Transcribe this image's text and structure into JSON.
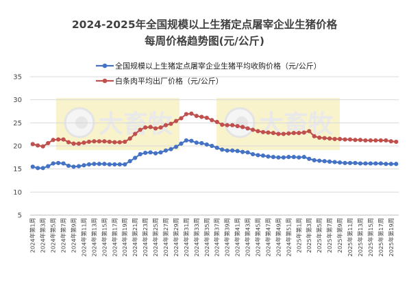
{
  "chart_data": {
    "type": "line",
    "title_lines": [
      "2024-2025年全国规模以上生猪定点屠宰企业生猪价格",
      "每周价格趋势图(元/公斤)"
    ],
    "xlabel": "",
    "ylabel": "",
    "ylim": [
      5,
      35
    ],
    "yticks": [
      5,
      10,
      15,
      20,
      25,
      30,
      35
    ],
    "grid": true,
    "legend_position": "top",
    "watermark_text": "大畜牧",
    "categories": [
      "2024年第1周",
      "2024年第2周",
      "2024年第3周",
      "2024年第4周",
      "2024年第5周",
      "2024年第6周",
      "2024年第7周",
      "2024年第8周",
      "2024年第9周",
      "2024年第10周",
      "2024年第11周",
      "2024年第12周",
      "2024年第13周",
      "2024年第14周",
      "2024年第15周",
      "2024年第16周",
      "2024年第17周",
      "2024年第18周",
      "2024年第19周",
      "2024年第20周",
      "2024年第21周",
      "2024年第22周",
      "2024年第23周",
      "2024年第24周",
      "2024年第25周",
      "2024年第26周",
      "2024年第27周",
      "2024年第28周",
      "2024年第29周",
      "2024年第30周",
      "2024年第31周",
      "2024年第32周",
      "2024年第33周",
      "2024年第34周",
      "2024年第35周",
      "2024年第36周",
      "2024年第37周",
      "2024年第38周",
      "2024年第39周",
      "2024年第40周",
      "2024年第41周",
      "2024年第42周",
      "2024年第43周",
      "2024年第44周",
      "2024年第45周",
      "2024年第46周",
      "2024年第47周",
      "2024年第48周",
      "2024年第49周",
      "2024年第50周",
      "2024年第51周",
      "2024年第52周",
      "2025年第1周",
      "2025年第2周",
      "2025年第3周",
      "2025年第4周",
      "2025年第5周",
      "2025年第6周",
      "2025年第7周",
      "2025年第8周",
      "2025年第9周",
      "2025年第10周",
      "2025年第11周",
      "2025年第12周",
      "2025年第13周",
      "2025年第14周",
      "2025年第15周",
      "2025年第16周",
      "2025年第17周",
      "2025年第18周",
      "2025年第19周",
      "2025年第20周"
    ],
    "x_tick_labels": [
      "2024年第1周",
      "2024年第3周",
      "2024年第5周",
      "2024年第7周",
      "2024年第9周",
      "2024年第11周",
      "2024年第13周",
      "2024年第15周",
      "2024年第17周",
      "2024年第19周",
      "2024年第21周",
      "2024年第23周",
      "2024年第25周",
      "2024年第27周",
      "2024年第29周",
      "2024年第31周",
      "2024年第33周",
      "2024年第35周",
      "2024年第37周",
      "2024年第39周",
      "2024年第41周",
      "2024年第43周",
      "2024年第45周",
      "2024年第47周",
      "2024年第49周",
      "2024年第51周",
      "2025年第1周",
      "2025年第3周",
      "2025年第5周",
      "2025年第7周",
      "2025年第9周",
      "2025年第11周",
      "2025年第13周",
      "2025年第15周",
      "2025年第17周",
      "2025年第19周"
    ],
    "series": [
      {
        "name": "全国规模以上生猪定点屠宰企业生猪平均收购价格（元/公斤）",
        "color": "#4472c4",
        "values": [
          15.5,
          15.2,
          15.2,
          15.6,
          16.2,
          16.3,
          16.2,
          15.7,
          15.5,
          15.6,
          15.8,
          16.0,
          16.1,
          16.1,
          16.1,
          16.0,
          16.0,
          16.0,
          16.0,
          16.7,
          17.4,
          18.2,
          18.5,
          18.6,
          18.4,
          18.6,
          19.0,
          19.3,
          19.8,
          20.5,
          21.2,
          21.1,
          20.7,
          20.6,
          20.3,
          20.0,
          19.6,
          19.2,
          19.0,
          19.0,
          18.9,
          18.7,
          18.6,
          18.2,
          18.0,
          17.9,
          17.7,
          17.6,
          17.5,
          17.5,
          17.6,
          17.6,
          17.5,
          17.6,
          17.2,
          16.9,
          16.8,
          16.7,
          16.6,
          16.5,
          16.4,
          16.3,
          16.3,
          16.3,
          16.2,
          16.2,
          16.2,
          16.2,
          16.2,
          16.1,
          16.1,
          16.1
        ]
      },
      {
        "name": "白条肉平均出厂价格（元/公斤）",
        "color": "#c0504d",
        "values": [
          20.4,
          20.1,
          19.9,
          20.6,
          21.3,
          21.4,
          21.4,
          20.8,
          20.5,
          20.5,
          20.7,
          20.9,
          21.0,
          21.0,
          21.0,
          20.9,
          20.8,
          20.8,
          20.9,
          21.6,
          22.6,
          23.5,
          24.0,
          24.1,
          23.8,
          24.0,
          24.5,
          24.8,
          25.4,
          26.0,
          26.9,
          27.0,
          26.5,
          26.3,
          26.1,
          25.6,
          25.2,
          24.6,
          24.5,
          24.5,
          24.3,
          24.1,
          23.8,
          23.5,
          23.2,
          23.0,
          22.9,
          22.8,
          22.6,
          22.6,
          22.7,
          22.8,
          22.8,
          22.9,
          23.2,
          22.1,
          21.8,
          21.7,
          21.6,
          21.5,
          21.5,
          21.4,
          21.4,
          21.3,
          21.3,
          21.2,
          21.2,
          21.2,
          21.2,
          21.2,
          21.0,
          20.9
        ]
      }
    ]
  }
}
